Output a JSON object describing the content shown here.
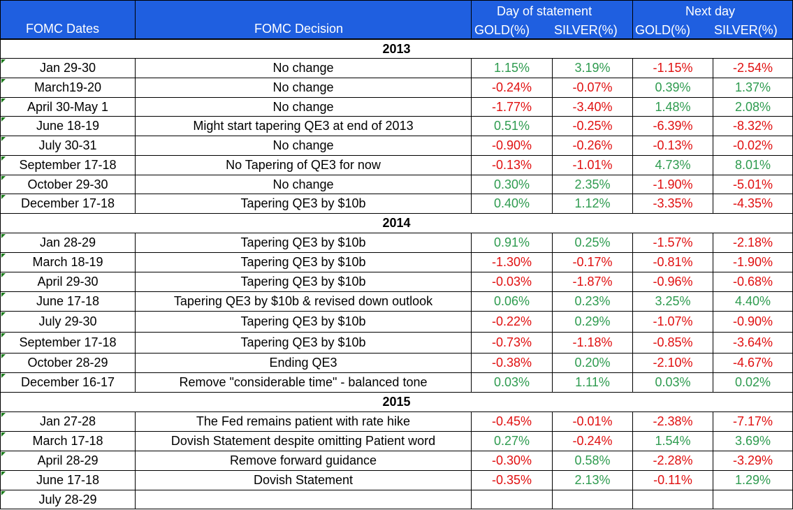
{
  "header": {
    "dates_label": "FOMC Dates",
    "decision_label": "FOMC Decision",
    "group_day": "Day of statement",
    "group_next": "Next day",
    "gold_label": "GOLD(%)",
    "silver_label": "SILVER(%)"
  },
  "colors": {
    "header_bg": "#1f5fe0",
    "positive": "#2e9b4f",
    "negative": "#e01010"
  },
  "rows": [
    {
      "type": "year",
      "label": "2013"
    },
    {
      "type": "data",
      "date": "Jan 29-30",
      "decision": "No change",
      "day_gold": "1.15%",
      "day_silver": "3.19%",
      "next_gold": "-1.15%",
      "next_silver": "-2.54%"
    },
    {
      "type": "data",
      "date": "March19-20",
      "decision": "No change",
      "day_gold": "-0.24%",
      "day_silver": "-0.07%",
      "next_gold": "0.39%",
      "next_silver": "1.37%"
    },
    {
      "type": "data",
      "date": "April 30-May 1",
      "decision": "No change",
      "day_gold": "-1.77%",
      "day_silver": "-3.40%",
      "next_gold": "1.48%",
      "next_silver": "2.08%"
    },
    {
      "type": "data",
      "date": "June 18-19",
      "decision": "Might start tapering QE3 at end of 2013",
      "day_gold": "0.51%",
      "day_silver": "-0.25%",
      "next_gold": "-6.39%",
      "next_silver": "-8.32%"
    },
    {
      "type": "data",
      "date": "July 30-31",
      "decision": "No change",
      "day_gold": "-0.90%",
      "day_silver": "-0.26%",
      "next_gold": "-0.13%",
      "next_silver": "-0.02%"
    },
    {
      "type": "data",
      "date": "September  17-18",
      "decision": "No Tapering of QE3 for now",
      "day_gold": "-0.13%",
      "day_silver": "-1.01%",
      "next_gold": "4.73%",
      "next_silver": "8.01%"
    },
    {
      "type": "data",
      "date": "October 29-30",
      "decision": "No change",
      "day_gold": "0.30%",
      "day_silver": "2.35%",
      "next_gold": "-1.90%",
      "next_silver": "-5.01%"
    },
    {
      "type": "data",
      "date": "December 17-18",
      "decision": "Tapering QE3 by $10b",
      "day_gold": "0.40%",
      "day_silver": "1.12%",
      "next_gold": "-3.35%",
      "next_silver": "-4.35%"
    },
    {
      "type": "year",
      "label": "2014"
    },
    {
      "type": "data",
      "date": "Jan 28-29",
      "decision": "Tapering QE3 by $10b",
      "day_gold": "0.91%",
      "day_silver": "0.25%",
      "next_gold": "-1.57%",
      "next_silver": "-2.18%"
    },
    {
      "type": "data",
      "date": "March 18-19",
      "decision": "Tapering QE3 by $10b",
      "day_gold": "-1.30%",
      "day_silver": "-0.17%",
      "next_gold": "-0.81%",
      "next_silver": "-1.90%"
    },
    {
      "type": "data",
      "date": "April 29-30",
      "decision": "Tapering QE3 by $10b",
      "day_gold": "-0.03%",
      "day_silver": "-1.87%",
      "next_gold": "-0.96%",
      "next_silver": "-0.68%"
    },
    {
      "type": "data",
      "date": "June 17-18",
      "decision": "Tapering QE3 by $10b & revised down outlook",
      "day_gold": "0.06%",
      "day_silver": "0.23%",
      "next_gold": "3.25%",
      "next_silver": "4.40%"
    },
    {
      "type": "data",
      "date": "July 29-30",
      "decision": "Tapering QE3 by $10b",
      "day_gold": "-0.22%",
      "day_silver": "0.29%",
      "next_gold": "-1.07%",
      "next_silver": "-0.90%"
    },
    {
      "type": "data",
      "date": "September  17-18",
      "decision": "Tapering QE3 by $10b",
      "day_gold": "-0.73%",
      "day_silver": "-1.18%",
      "next_gold": "-0.85%",
      "next_silver": "-3.64%"
    },
    {
      "type": "data",
      "date": "October 28-29",
      "decision": "Ending QE3",
      "day_gold": "-0.38%",
      "day_silver": "0.20%",
      "next_gold": "-2.10%",
      "next_silver": "-4.67%"
    },
    {
      "type": "data",
      "date": "December 16-17",
      "decision": "Remove \"considerable time\" - balanced tone",
      "day_gold": "0.03%",
      "day_silver": "1.11%",
      "next_gold": "0.03%",
      "next_silver": "0.02%"
    },
    {
      "type": "year",
      "label": "2015"
    },
    {
      "type": "data",
      "date": "Jan 27-28",
      "decision": "The Fed remains patient with rate hike",
      "day_gold": "-0.45%",
      "day_silver": "-0.01%",
      "next_gold": "-2.38%",
      "next_silver": "-7.17%"
    },
    {
      "type": "data",
      "date": "March 17-18",
      "decision": "Dovish Statement  despite omitting Patient word",
      "day_gold": "0.27%",
      "day_silver": "-0.24%",
      "next_gold": "1.54%",
      "next_silver": "3.69%"
    },
    {
      "type": "data",
      "date": "April 28-29",
      "decision": "Remove forward guidance",
      "day_gold": "-0.30%",
      "day_silver": "0.58%",
      "next_gold": "-2.28%",
      "next_silver": "-3.29%"
    },
    {
      "type": "data",
      "date": "June 17-18",
      "decision": "Dovish Statement",
      "day_gold": "-0.35%",
      "day_silver": "2.13%",
      "next_gold": "-0.11%",
      "next_silver": "1.29%"
    },
    {
      "type": "data",
      "date": "July 28-29",
      "decision": "",
      "day_gold": "",
      "day_silver": "",
      "next_gold": "",
      "next_silver": ""
    }
  ]
}
